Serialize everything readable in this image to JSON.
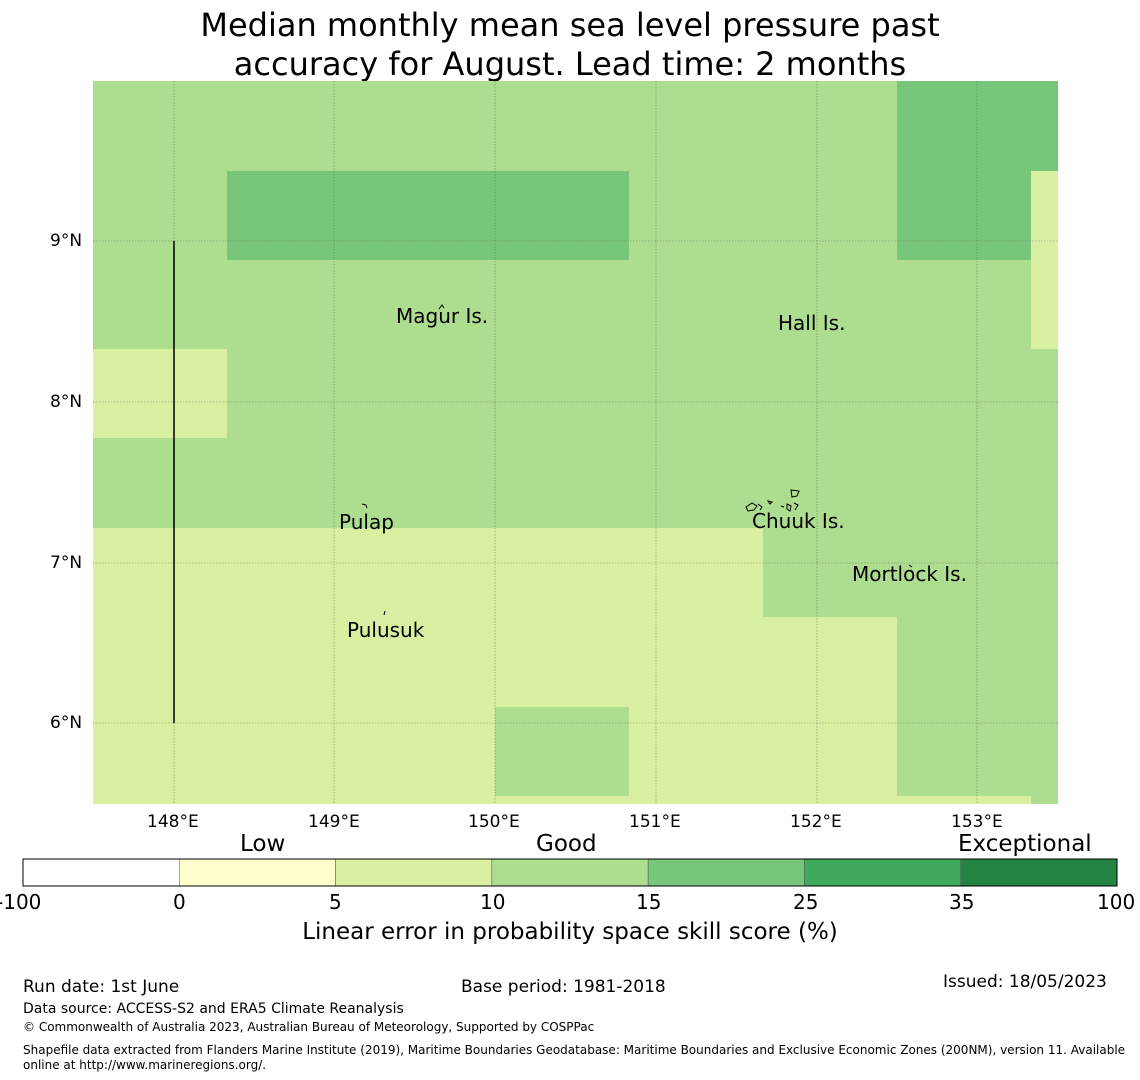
{
  "title": {
    "line1": "Median monthly mean sea level pressure past",
    "line2": "accuracy for August. Lead time: 2 months"
  },
  "map": {
    "lon_ticks": [
      "148°E",
      "149°E",
      "150°E",
      "151°E",
      "152°E",
      "153°E"
    ],
    "lat_ticks": [
      "9°N",
      "8°N",
      "7°N",
      "6°N"
    ],
    "places": [
      "Magur Is.",
      "Hall Is.",
      "Pulap",
      "Chuuk Is.",
      "Mortlock Is.",
      "Pulusuk"
    ],
    "extent": {
      "lon": [
        147.5,
        153.5
      ],
      "lat": [
        5.5,
        10.0
      ]
    }
  },
  "legend": {
    "categories": [
      "Low",
      "Good",
      "Exceptional"
    ],
    "ticks": [
      "-100",
      "0",
      "5",
      "10",
      "15",
      "25",
      "35",
      "100"
    ],
    "colors": [
      "#ffffff",
      "#ffffcc",
      "#d9f0a3",
      "#addd8e",
      "#78c679",
      "#41ab5d",
      "#238443"
    ],
    "label": "Linear error in probability space skill score (%)"
  },
  "footer": {
    "run_date": "Run date: 1st June",
    "base_period": "Base period: 1981-2018",
    "issued": "Issued: 18/05/2023",
    "data_source": "Data source: ACCESS-S2 and ERA5 Climate Reanalysis",
    "copyright": "© Commonwealth of Australia 2023, Australian Bureau of Meteorology, Supported by COSPPac",
    "shapefile_line1": "Shapefile data extracted from Flanders Marine Institute (2019), Maritime Boundaries Geodatabase: Maritime Boundaries and Exclusive Economic Zones (200NM), version 11. Available",
    "shapefile_line2": "online at http://www.marineregions.org/."
  }
}
